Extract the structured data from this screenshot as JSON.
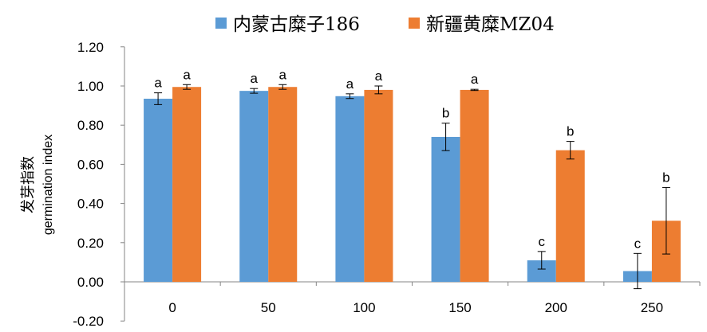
{
  "chart_data": {
    "type": "bar",
    "categories": [
      "0",
      "50",
      "100",
      "150",
      "200",
      "250"
    ],
    "series": [
      {
        "name": "内蒙古糜子186",
        "color": "#5B9BD5",
        "values": [
          0.935,
          0.975,
          0.948,
          0.74,
          0.11,
          0.055
        ],
        "errors": [
          0.03,
          0.012,
          0.012,
          0.07,
          0.045,
          0.09
        ],
        "letters": [
          "a",
          "a",
          "a",
          "b",
          "c",
          "c"
        ]
      },
      {
        "name": "新疆黄糜MZ04",
        "color": "#ED7D31",
        "values": [
          0.995,
          0.995,
          0.98,
          0.98,
          0.672,
          0.312
        ],
        "errors": [
          0.012,
          0.012,
          0.02,
          0.003,
          0.045,
          0.17
        ],
        "letters": [
          "a",
          "a",
          "a",
          "a",
          "b",
          "b"
        ]
      }
    ],
    "ylabel_cn": "发芽指数",
    "ylabel_en": "germination index",
    "xlabel": "",
    "title": "",
    "ylim": [
      -0.2,
      1.2
    ],
    "yticks": [
      "-0.20",
      "0.00",
      "0.20",
      "0.40",
      "0.60",
      "0.80",
      "1.00",
      "1.20"
    ],
    "legend_position": "top",
    "grid": false
  }
}
